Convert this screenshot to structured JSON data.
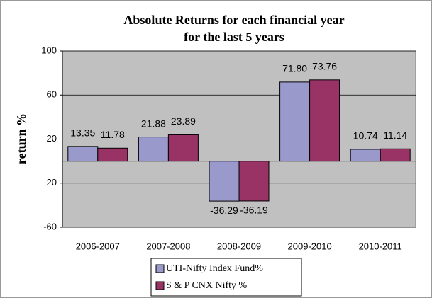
{
  "chart_data": {
    "type": "bar",
    "title": [
      "Absolute Returns for each financial year",
      "for the last 5 years"
    ],
    "y_label": "return %",
    "categories": [
      "2006-2007",
      "2007-2008",
      "2008-2009",
      "2009-2010",
      "2010-2011"
    ],
    "series": [
      {
        "name": "UTI-Nifty Index Fund%",
        "color": "#9999cc",
        "values": [
          13.35,
          21.88,
          -36.29,
          71.8,
          10.74
        ],
        "value_labels": [
          "13.35",
          "21.88",
          "-36.29",
          "71.80",
          "10.74"
        ]
      },
      {
        "name": "S & P CNX Nifty %",
        "color": "#993366",
        "values": [
          11.78,
          23.89,
          -36.19,
          73.76,
          11.14
        ],
        "value_labels": [
          "11.78",
          "23.89",
          "-36.19",
          "73.76",
          "11.14"
        ]
      }
    ],
    "ylim": [
      -60,
      100
    ],
    "yticks": [
      -60,
      -20,
      20,
      60,
      100
    ],
    "grid": true,
    "legend": "bottom"
  }
}
